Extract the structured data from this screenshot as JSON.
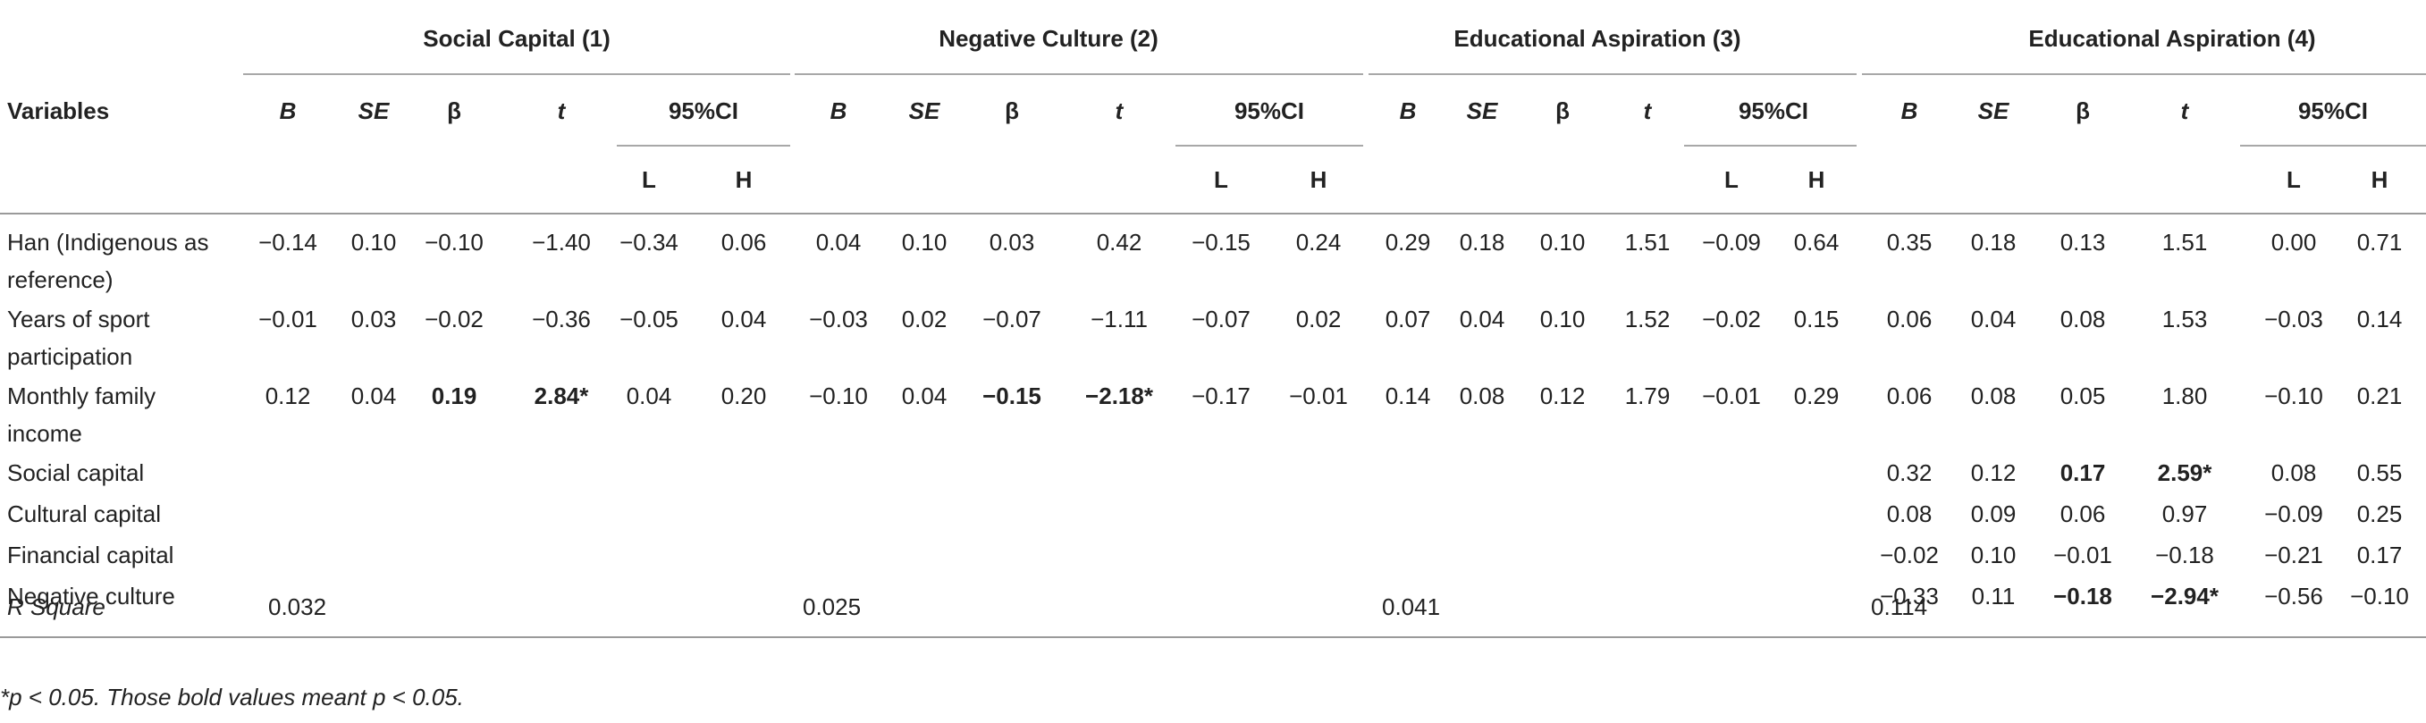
{
  "groups": [
    "Social Capital (1)",
    "Negative Culture (2)",
    "Educational Aspiration (3)",
    "Educational Aspiration (4)"
  ],
  "variables_header": "Variables",
  "stat_cols": [
    "B",
    "SE",
    "β",
    "t",
    "95%CI"
  ],
  "ci_cols": [
    "L",
    "H"
  ],
  "rows": [
    {
      "label": "Han (Indigenous as reference)",
      "cells": [
        "−0.14",
        "0.10",
        "−0.10",
        "−1.40",
        "−0.34",
        "0.06",
        "0.04",
        "0.10",
        "0.03",
        "0.42",
        "−0.15",
        "0.24",
        "0.29",
        "0.18",
        "0.10",
        "1.51",
        "−0.09",
        "0.64",
        "0.35",
        "0.18",
        "0.13",
        "1.51",
        "0.00",
        "0.71"
      ],
      "bold": []
    },
    {
      "label": "Years of sport participation",
      "cells": [
        "−0.01",
        "0.03",
        "−0.02",
        "−0.36",
        "−0.05",
        "0.04",
        "−0.03",
        "0.02",
        "−0.07",
        "−1.11",
        "−0.07",
        "0.02",
        "0.07",
        "0.04",
        "0.10",
        "1.52",
        "−0.02",
        "0.15",
        "0.06",
        "0.04",
        "0.08",
        "1.53",
        "−0.03",
        "0.14"
      ],
      "bold": []
    },
    {
      "label": "Monthly family income",
      "cells": [
        "0.12",
        "0.04",
        "0.19",
        "2.84*",
        "0.04",
        "0.20",
        "−0.10",
        "0.04",
        "−0.15",
        "−2.18*",
        "−0.17",
        "−0.01",
        "0.14",
        "0.08",
        "0.12",
        "1.79",
        "−0.01",
        "0.29",
        "0.06",
        "0.08",
        "0.05",
        "1.80",
        "−0.10",
        "0.21"
      ],
      "bold": [
        2,
        3,
        8,
        9
      ]
    },
    {
      "label": "Social capital",
      "cells": [
        "",
        "",
        "",
        "",
        "",
        "",
        "",
        "",
        "",
        "",
        "",
        "",
        "",
        "",
        "",
        "",
        "",
        "",
        "0.32",
        "0.12",
        "0.17",
        "2.59*",
        "0.08",
        "0.55"
      ],
      "bold": [
        20,
        21
      ]
    },
    {
      "label": "Cultural capital",
      "cells": [
        "",
        "",
        "",
        "",
        "",
        "",
        "",
        "",
        "",
        "",
        "",
        "",
        "",
        "",
        "",
        "",
        "",
        "",
        "0.08",
        "0.09",
        "0.06",
        "0.97",
        "−0.09",
        "0.25"
      ],
      "bold": []
    },
    {
      "label": "Financial capital",
      "cells": [
        "",
        "",
        "",
        "",
        "",
        "",
        "",
        "",
        "",
        "",
        "",
        "",
        "",
        "",
        "",
        "",
        "",
        "",
        "−0.02",
        "0.10",
        "−0.01",
        "−0.18",
        "−0.21",
        "0.17"
      ],
      "bold": []
    },
    {
      "label": "Negative culture",
      "cells": [
        "",
        "",
        "",
        "",
        "",
        "",
        "",
        "",
        "",
        "",
        "",
        "",
        "",
        "",
        "",
        "",
        "",
        "",
        "−0.33",
        "0.11",
        "−0.18",
        "−2.94*",
        "−0.56",
        "−0.10"
      ],
      "bold": [
        20,
        21
      ]
    }
  ],
  "r_square": {
    "label": "R Square",
    "values": [
      "0.032",
      "0.025",
      "0.041",
      "0.114"
    ]
  },
  "footnote": "*p < 0.05. Those bold values meant p < 0.05."
}
